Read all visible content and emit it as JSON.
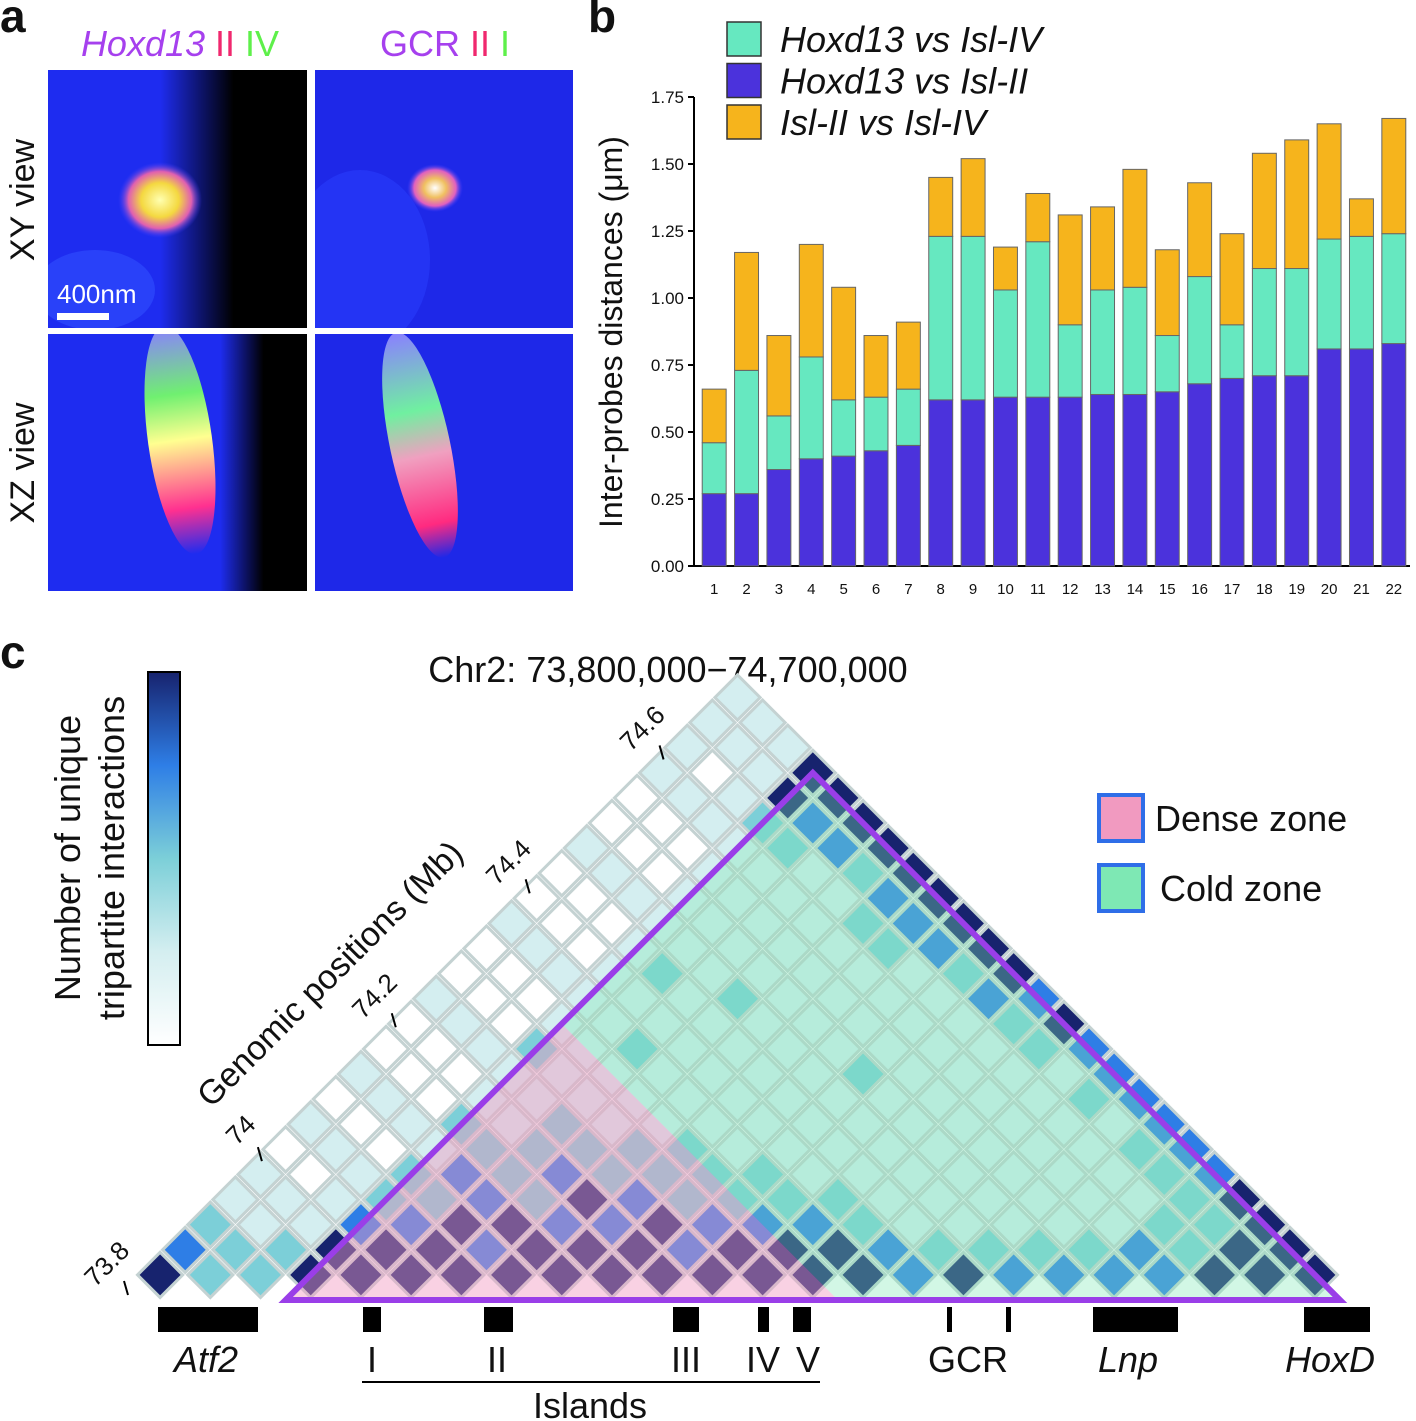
{
  "image_panel": {
    "label": "a",
    "column_titles": [
      [
        {
          "text": "Hoxd13",
          "color": "#a640ee",
          "italic": true
        },
        {
          "text": "II",
          "color": "#f0286e"
        },
        {
          "text": "IV",
          "color": "#5ef04a"
        }
      ],
      [
        {
          "text": "GCR",
          "color": "#a640ee"
        },
        {
          "text": "II",
          "color": "#f0286e"
        },
        {
          "text": "I",
          "color": "#5ef04a"
        }
      ]
    ],
    "row_titles": [
      "XY view",
      "XZ view"
    ],
    "scale_bar": "400nm"
  },
  "chart_data": [
    {
      "type": "bar",
      "stacked": true,
      "panel_label": "b",
      "ylabel": "Inter-probes distances (μm)",
      "categories": [
        "1",
        "2",
        "3",
        "4",
        "5",
        "6",
        "7",
        "8",
        "9",
        "10",
        "11",
        "12",
        "13",
        "14",
        "15",
        "16",
        "17",
        "18",
        "19",
        "20",
        "21",
        "22"
      ],
      "series": [
        {
          "name": "Hoxd13 vs Isl-IV",
          "color": "#66e8c0",
          "values": [
            0.19,
            0.46,
            0.2,
            0.38,
            0.21,
            0.2,
            0.21,
            0.61,
            0.61,
            0.4,
            0.58,
            0.27,
            0.39,
            0.4,
            0.21,
            0.4,
            0.2,
            0.4,
            0.4,
            0.41,
            0.42,
            0.41
          ]
        },
        {
          "name": "Hoxd13 vs Isl-II",
          "color": "#4b32dc",
          "values": [
            0.27,
            0.27,
            0.36,
            0.4,
            0.41,
            0.43,
            0.45,
            0.62,
            0.62,
            0.63,
            0.63,
            0.63,
            0.64,
            0.64,
            0.65,
            0.68,
            0.7,
            0.71,
            0.71,
            0.81,
            0.81,
            0.83
          ]
        },
        {
          "name": "Isl-II vs Isl-IV",
          "color": "#f6b41c",
          "values": [
            0.2,
            0.44,
            0.3,
            0.42,
            0.42,
            0.23,
            0.25,
            0.22,
            0.29,
            0.16,
            0.18,
            0.41,
            0.31,
            0.44,
            0.32,
            0.35,
            0.34,
            0.43,
            0.48,
            0.43,
            0.14,
            0.43
          ]
        }
      ],
      "stack_order": [
        1,
        0,
        2
      ],
      "legend": "top-left",
      "ylim": [
        0,
        1.75
      ],
      "yticks": [
        {
          "value": 0,
          "label": "0.00"
        },
        {
          "value": 0.25,
          "label": "0.25"
        },
        {
          "value": 0.5,
          "label": "0.50"
        },
        {
          "value": 0.75,
          "label": "0.75"
        },
        {
          "value": 1,
          "label": "1.00"
        },
        {
          "value": 1.25,
          "label": "1.25"
        },
        {
          "value": 1.5,
          "label": "1.50"
        },
        {
          "value": 1.75,
          "label": "1.75"
        }
      ]
    },
    {
      "type": "heatmap",
      "panel_label": "c",
      "title": "Chr2: 73,800,000−74,700,000",
      "xlabel": "Genomic positions (Mb)",
      "colorbar_label": [
        "Number of unique",
        "tripartite interactions"
      ],
      "xlim": [
        73.8,
        74.7
      ],
      "xticks": [
        73.8,
        74,
        74.2,
        74.4,
        74.6
      ],
      "colors": [
        "#ffffff",
        "#d4eef0",
        "#7ccfd8",
        "#2e7ee6",
        "#17236e"
      ],
      "matrix": [
        [
          4,
          3,
          2,
          1,
          1,
          0,
          1,
          0,
          1,
          0,
          0,
          1,
          0,
          0,
          1,
          0,
          0,
          1,
          0,
          0,
          1,
          1,
          1,
          1
        ],
        [
          2,
          2,
          1,
          1,
          0,
          1,
          0,
          1,
          0,
          0,
          1,
          0,
          0,
          1,
          0,
          0,
          1,
          0,
          0,
          1,
          0,
          1,
          1
        ],
        [
          2,
          2,
          1,
          1,
          1,
          0,
          1,
          0,
          0,
          1,
          0,
          0,
          1,
          0,
          0,
          1,
          0,
          0,
          1,
          1,
          1,
          1
        ],
        [
          4,
          4,
          3,
          2,
          2,
          1,
          2,
          1,
          1,
          2,
          1,
          1,
          1,
          1,
          1,
          1,
          1,
          1,
          2,
          4,
          4
        ],
        [
          4,
          4,
          3,
          2,
          3,
          2,
          1,
          1,
          1,
          1,
          1,
          1,
          2,
          1,
          1,
          1,
          1,
          2,
          3,
          4
        ],
        [
          4,
          4,
          4,
          3,
          2,
          2,
          2,
          1,
          1,
          2,
          1,
          1,
          1,
          1,
          1,
          1,
          1,
          3,
          4
        ],
        [
          4,
          3,
          4,
          2,
          3,
          2,
          1,
          1,
          1,
          1,
          1,
          2,
          1,
          1,
          1,
          1,
          2,
          4
        ],
        [
          4,
          4,
          3,
          4,
          2,
          2,
          1,
          1,
          1,
          1,
          1,
          1,
          1,
          1,
          2,
          3,
          4
        ],
        [
          4,
          4,
          3,
          3,
          2,
          2,
          1,
          1,
          1,
          1,
          1,
          1,
          1,
          2,
          3,
          4
        ],
        [
          4,
          4,
          4,
          2,
          2,
          1,
          1,
          1,
          1,
          1,
          1,
          1,
          1,
          3,
          4
        ],
        [
          4,
          3,
          3,
          2,
          2,
          1,
          1,
          1,
          2,
          1,
          1,
          1,
          2,
          4
        ],
        [
          4,
          4,
          3,
          2,
          1,
          1,
          1,
          1,
          1,
          1,
          1,
          3,
          4
        ],
        [
          4,
          4,
          3,
          2,
          1,
          1,
          1,
          1,
          1,
          1,
          2,
          3
        ],
        [
          4,
          4,
          2,
          1,
          1,
          1,
          1,
          1,
          1,
          2,
          4
        ],
        [
          4,
          3,
          1,
          1,
          1,
          1,
          1,
          1,
          1,
          3
        ],
        [
          3,
          2,
          1,
          1,
          1,
          1,
          1,
          2,
          3
        ],
        [
          4,
          2,
          1,
          1,
          1,
          1,
          1,
          3
        ],
        [
          3,
          2,
          1,
          1,
          1,
          2,
          3
        ],
        [
          3,
          2,
          1,
          1,
          2,
          3
        ],
        [
          3,
          3,
          2,
          2,
          3
        ],
        [
          3,
          2,
          2,
          4
        ],
        [
          4,
          4,
          4
        ],
        [
          4,
          4
        ],
        [
          4
        ]
      ],
      "legend": [
        {
          "name": "Dense zone",
          "color": "#f19ac0"
        },
        {
          "name": "Cold zone",
          "color": "#7ee8b4"
        }
      ],
      "track": [
        {
          "label": "Atf2",
          "italic": true
        },
        {
          "label": "I"
        },
        {
          "label": "II"
        },
        {
          "label": "III"
        },
        {
          "label": "IV"
        },
        {
          "label": "V"
        },
        {
          "label": "GCR"
        },
        {
          "label": "Lnp",
          "italic": true
        },
        {
          "label": "HoxD",
          "italic": true
        }
      ],
      "group_label": "Islands"
    }
  ]
}
